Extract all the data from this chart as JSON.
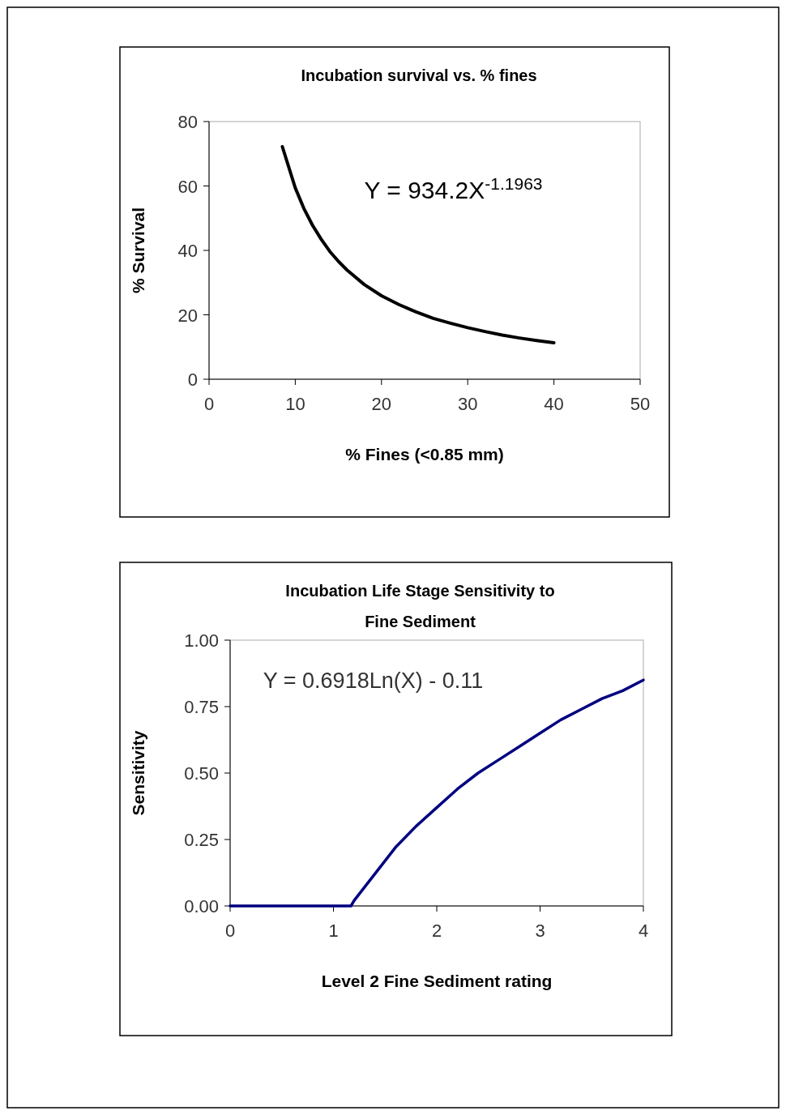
{
  "chart_data": [
    {
      "type": "line",
      "title": "Incubation survival vs. % fines",
      "xlabel": "% Fines (<0.85 mm)",
      "ylabel": "% Survival",
      "annotations": [
        "Y = 934.2X$^{-1.1963}$"
      ],
      "x": [
        8.5,
        10,
        11,
        12,
        13,
        14,
        15,
        16,
        18,
        20,
        22,
        24,
        26,
        28,
        30,
        32,
        34,
        36,
        38,
        40
      ],
      "values": [
        72.2,
        59.4,
        53.0,
        47.8,
        43.5,
        39.7,
        36.6,
        33.9,
        29.4,
        25.9,
        23.2,
        20.9,
        18.9,
        17.4,
        16.0,
        14.8,
        13.7,
        12.8,
        12.0,
        11.3
      ],
      "color": "#000000",
      "xlim": [
        0,
        50
      ],
      "xticks": [
        0,
        10,
        20,
        30,
        40,
        50
      ],
      "ylim": [
        0,
        80
      ],
      "yticks": [
        0,
        20,
        40,
        60,
        80
      ],
      "grid": false,
      "marker": "none",
      "line_style": "solid"
    },
    {
      "type": "line",
      "title": "Incubation Life Stage Sensitivity to Fine Sediment",
      "xlabel": "Level 2 Fine Sediment rating",
      "ylabel": "Sensitivity",
      "annotations": [
        "Y = 0.6918Ln(X) - 0.11"
      ],
      "x": [
        0,
        1,
        1.17,
        1.2,
        1.4,
        1.6,
        1.8,
        2,
        2.2,
        2.4,
        2.6,
        2.8,
        3,
        3.2,
        3.4,
        3.6,
        3.8,
        4
      ],
      "values": [
        0,
        0,
        0,
        0.02,
        0.12,
        0.22,
        0.3,
        0.37,
        0.44,
        0.5,
        0.55,
        0.6,
        0.65,
        0.7,
        0.74,
        0.78,
        0.81,
        0.85
      ],
      "color": "#000080",
      "xlim": [
        0,
        4
      ],
      "xticks": [
        0,
        1,
        2,
        3,
        4
      ],
      "ylim": [
        0,
        1
      ],
      "yticks": [
        {
          "value": 0,
          "label": "0.00"
        },
        {
          "value": 0.25,
          "label": "0.25"
        },
        {
          "value": 0.5,
          "label": "0.50"
        },
        {
          "value": 0.75,
          "label": "0.75"
        },
        {
          "value": 1,
          "label": "1.00"
        }
      ],
      "grid": false,
      "marker": "none",
      "line_style": "solid"
    }
  ]
}
